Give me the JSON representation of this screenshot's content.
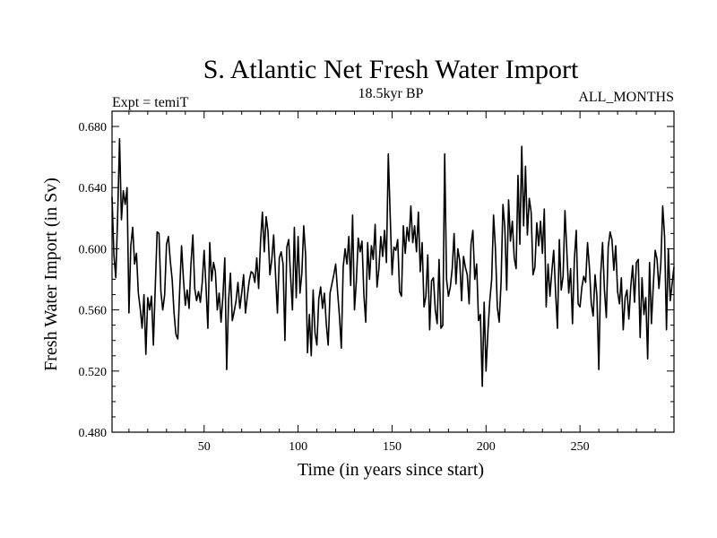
{
  "chart_data": {
    "type": "line",
    "title": "S. Atlantic Net Fresh Water Import",
    "subtitle_left": "Expt = temiT",
    "subtitle_center": "18.5kyr BP",
    "subtitle_right": "ALL_MONTHS",
    "xlabel": "Time (in years since start)",
    "ylabel": "Fresh Water Import (in Sv)",
    "xlim": [
      1,
      300
    ],
    "ylim": [
      0.48,
      0.69
    ],
    "x_ticks": [
      50,
      100,
      150,
      200,
      250
    ],
    "x_tick_labels": [
      "50",
      "100",
      "150",
      "200",
      "250"
    ],
    "y_ticks": [
      0.48,
      0.52,
      0.56,
      0.6,
      0.64,
      0.68
    ],
    "y_tick_labels": [
      "0.480",
      "0.520",
      "0.560",
      "0.600",
      "0.640",
      "0.680"
    ],
    "grid": false,
    "legend": "none",
    "series": [
      {
        "name": "Fresh Water Import",
        "color": "#000000",
        "x_start": 1,
        "x_step": 1,
        "values": [
          0.634,
          0.596,
          0.581,
          0.622,
          0.672,
          0.619,
          0.638,
          0.629,
          0.64,
          0.558,
          0.602,
          0.614,
          0.59,
          0.597,
          0.571,
          0.561,
          0.548,
          0.57,
          0.531,
          0.568,
          0.56,
          0.569,
          0.537,
          0.575,
          0.611,
          0.61,
          0.572,
          0.56,
          0.57,
          0.603,
          0.608,
          0.592,
          0.58,
          0.558,
          0.544,
          0.541,
          0.573,
          0.602,
          0.58,
          0.563,
          0.573,
          0.561,
          0.59,
          0.609,
          0.574,
          0.566,
          0.572,
          0.565,
          0.578,
          0.599,
          0.575,
          0.548,
          0.604,
          0.579,
          0.591,
          0.585,
          0.56,
          0.571,
          0.552,
          0.569,
          0.594,
          0.521,
          0.566,
          0.584,
          0.553,
          0.559,
          0.566,
          0.578,
          0.561,
          0.571,
          0.583,
          0.558,
          0.569,
          0.579,
          0.585,
          0.584,
          0.578,
          0.594,
          0.574,
          0.604,
          0.624,
          0.598,
          0.621,
          0.611,
          0.583,
          0.593,
          0.609,
          0.583,
          0.558,
          0.594,
          0.598,
          0.59,
          0.54,
          0.601,
          0.606,
          0.582,
          0.56,
          0.614,
          0.568,
          0.608,
          0.571,
          0.584,
          0.615,
          0.596,
          0.532,
          0.557,
          0.53,
          0.573,
          0.545,
          0.537,
          0.567,
          0.575,
          0.561,
          0.571,
          0.551,
          0.537,
          0.571,
          0.577,
          0.583,
          0.59,
          0.572,
          0.556,
          0.535,
          0.588,
          0.6,
          0.59,
          0.608,
          0.576,
          0.622,
          0.56,
          0.579,
          0.607,
          0.598,
          0.605,
          0.57,
          0.552,
          0.604,
          0.58,
          0.602,
          0.593,
          0.616,
          0.575,
          0.587,
          0.608,
          0.595,
          0.612,
          0.591,
          0.662,
          0.622,
          0.583,
          0.601,
          0.599,
          0.606,
          0.572,
          0.569,
          0.615,
          0.597,
          0.614,
          0.605,
          0.628,
          0.604,
          0.615,
          0.598,
          0.624,
          0.585,
          0.604,
          0.562,
          0.569,
          0.596,
          0.547,
          0.579,
          0.581,
          0.56,
          0.551,
          0.593,
          0.548,
          0.55,
          0.662,
          0.58,
          0.569,
          0.575,
          0.587,
          0.61,
          0.577,
          0.6,
          0.592,
          0.566,
          0.595,
          0.588,
          0.583,
          0.564,
          0.603,
          0.612,
          0.58,
          0.59,
          0.553,
          0.557,
          0.51,
          0.565,
          0.52,
          0.546,
          0.566,
          0.58,
          0.622,
          0.6,
          0.562,
          0.552,
          0.578,
          0.629,
          0.614,
          0.573,
          0.632,
          0.605,
          0.618,
          0.594,
          0.587,
          0.648,
          0.603,
          0.667,
          0.615,
          0.654,
          0.609,
          0.633,
          0.624,
          0.583,
          0.588,
          0.617,
          0.602,
          0.618,
          0.597,
          0.626,
          0.562,
          0.59,
          0.569,
          0.585,
          0.599,
          0.572,
          0.548,
          0.606,
          0.573,
          0.582,
          0.625,
          0.598,
          0.571,
          0.587,
          0.551,
          0.593,
          0.612,
          0.564,
          0.562,
          0.575,
          0.582,
          0.578,
          0.604,
          0.588,
          0.564,
          0.556,
          0.583,
          0.569,
          0.521,
          0.583,
          0.604,
          0.573,
          0.555,
          0.601,
          0.611,
          0.606,
          0.586,
          0.602,
          0.572,
          0.564,
          0.581,
          0.547,
          0.568,
          0.573,
          0.554,
          0.575,
          0.589,
          0.565,
          0.591,
          0.593,
          0.542,
          0.581,
          0.557,
          0.568,
          0.528,
          0.591,
          0.551,
          0.576,
          0.599,
          0.593,
          0.574,
          0.59,
          0.628,
          0.608,
          0.547,
          0.6,
          0.566,
          0.577,
          0.588
        ]
      }
    ]
  }
}
